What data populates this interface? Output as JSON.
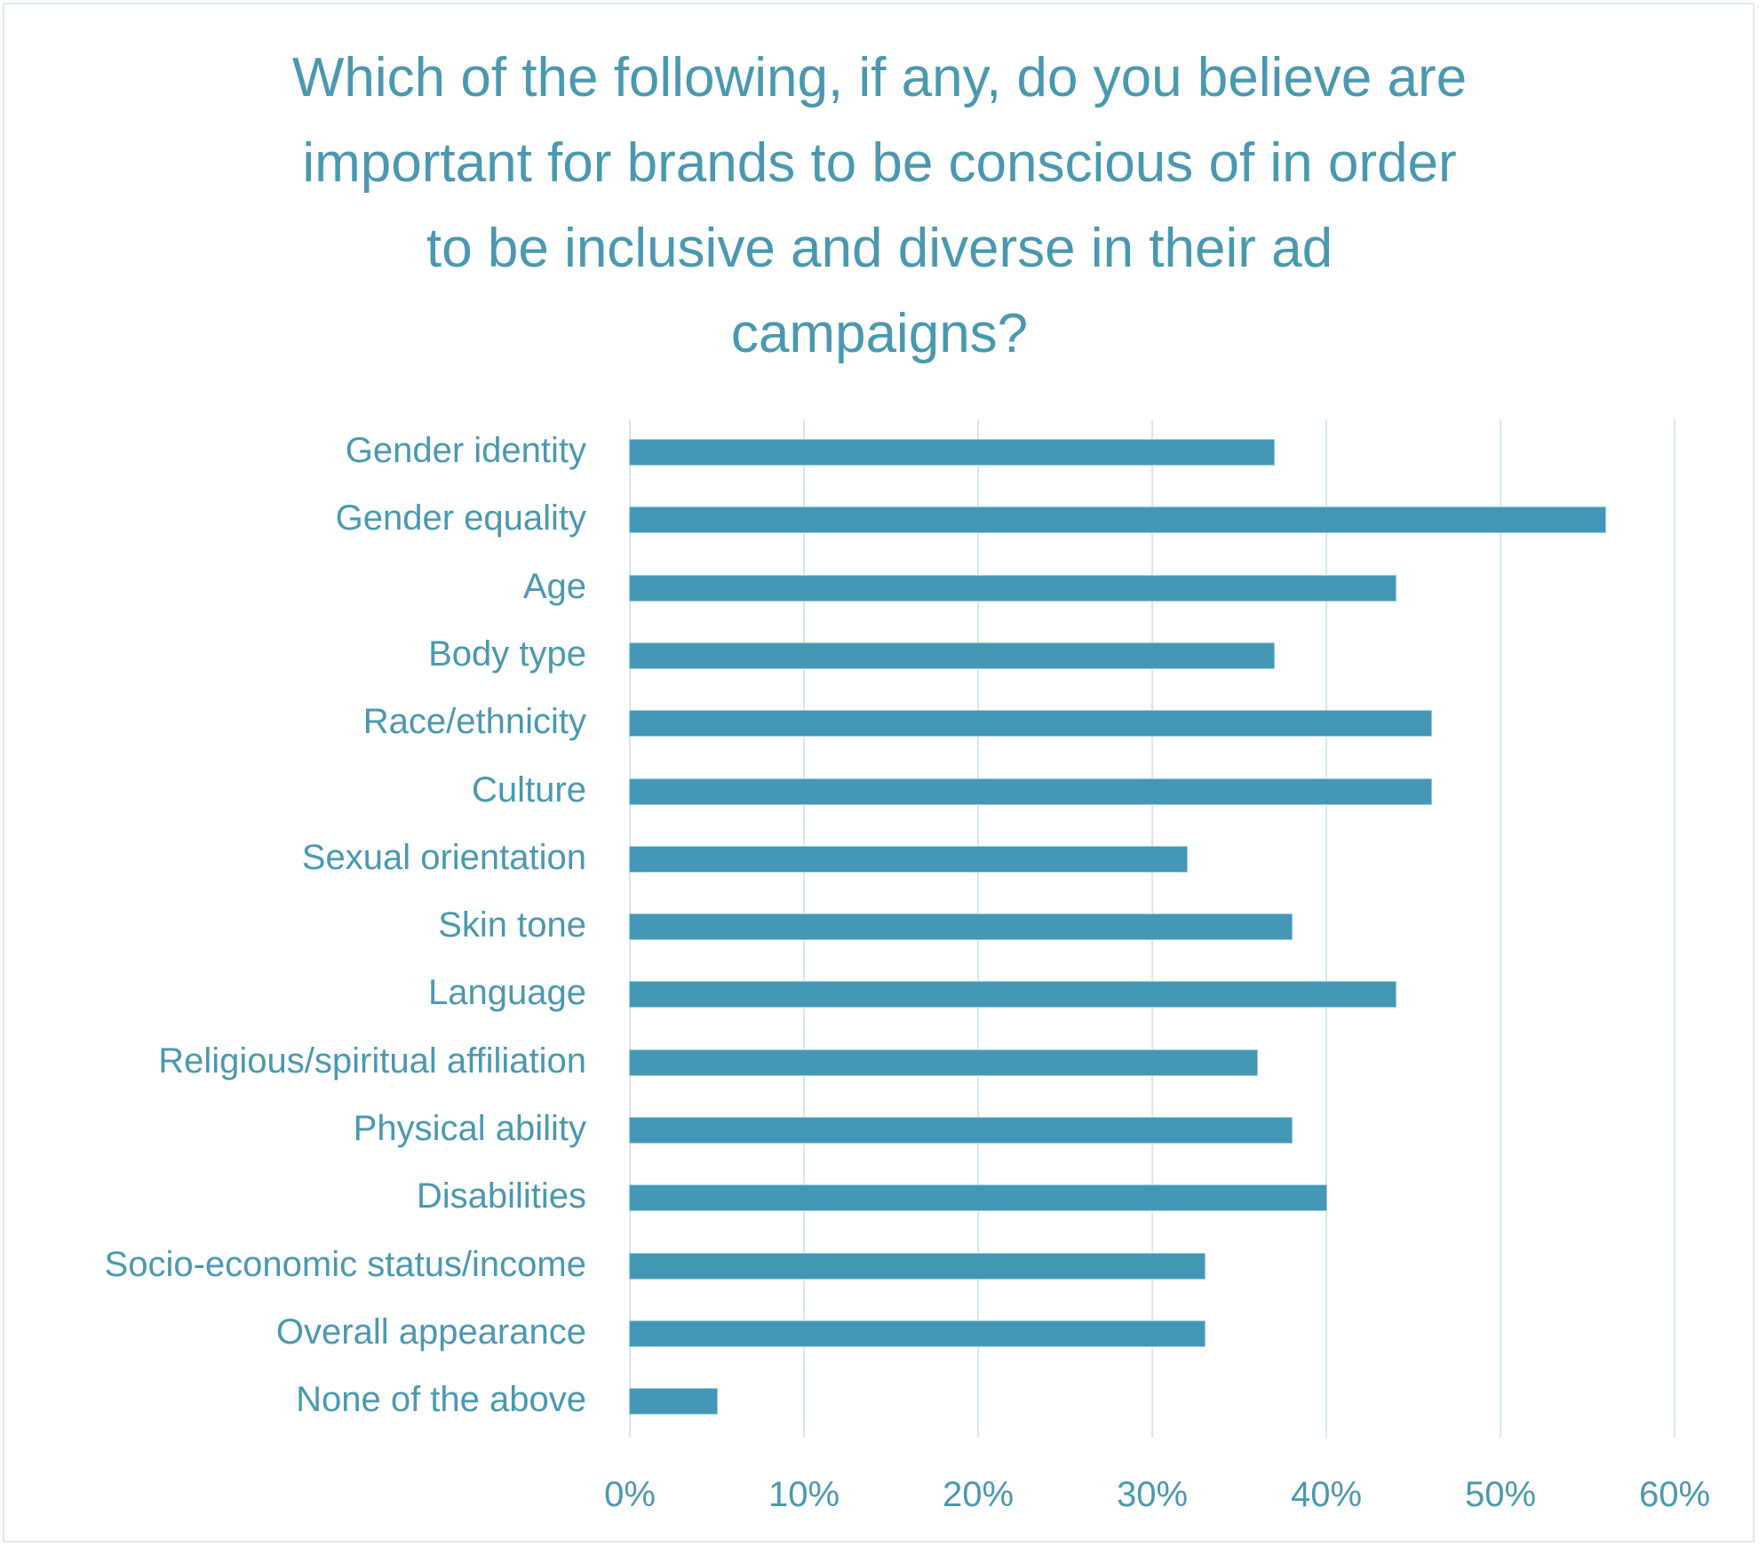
{
  "chart_data": {
    "type": "bar",
    "orientation": "horizontal",
    "title": "Which of the following, if any, do you believe are important for brands to be conscious of in order to be inclusive and diverse in their ad campaigns?",
    "title_lines": [
      "Which of the following, if any, do you believe are",
      "important for brands to be conscious of in order",
      "to be inclusive and diverse in their ad",
      "campaigns?"
    ],
    "categories": [
      "Gender identity",
      "Gender equality",
      "Age",
      "Body type",
      "Race/ethnicity",
      "Culture",
      "Sexual orientation",
      "Skin tone",
      "Language",
      "Religious/spiritual affiliation",
      "Physical ability",
      "Disabilities",
      "Socio-economic status/income",
      "Overall appearance",
      "None of the above"
    ],
    "values": [
      37,
      56,
      44,
      37,
      46,
      46,
      32,
      38,
      44,
      36,
      38,
      40,
      33,
      33,
      5
    ],
    "xlabel": "",
    "ylabel": "",
    "xlim": [
      0,
      60
    ],
    "x_ticks": [
      "0%",
      "10%",
      "20%",
      "30%",
      "40%",
      "50%",
      "60%"
    ],
    "grid": "vertical",
    "legend": "none",
    "colors": {
      "bar": "#4497B5",
      "text": "#4A98B0",
      "grid": "#D6E8EF",
      "border": "#DCEBF0"
    }
  }
}
